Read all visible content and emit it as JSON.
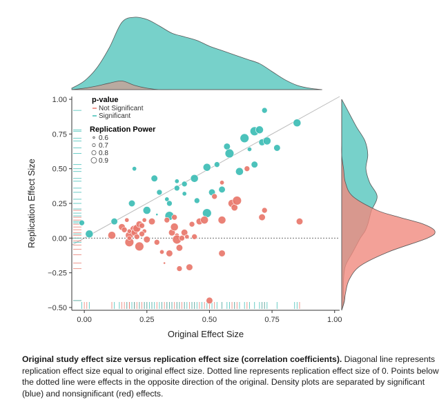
{
  "colors": {
    "significant": "#3dbdb5",
    "not_significant": "#e8776b",
    "significant_density": "#5fc9c1",
    "not_significant_density": "#f08a7e",
    "identity_line": "#bbbbbb",
    "axis": "#333333"
  },
  "chart_data": {
    "type": "scatter",
    "xlabel": "Original Effect Size",
    "ylabel": "Replication Effect Size",
    "xlim": [
      -0.05,
      1.02
    ],
    "ylim": [
      -0.52,
      1.02
    ],
    "xticks": [
      0.0,
      0.25,
      0.5,
      0.75,
      1.0
    ],
    "xtick_labels": [
      "0.00",
      "0.25",
      "0.50",
      "0.75",
      "1.00"
    ],
    "yticks": [
      -0.5,
      -0.25,
      0.0,
      0.25,
      0.5,
      0.75,
      1.0
    ],
    "ytick_labels": [
      "−0.50",
      "−0.25",
      "0.00",
      "0.25",
      "0.50",
      "0.75",
      "1.00"
    ],
    "reference_lines": [
      {
        "type": "diagonal",
        "slope": 1,
        "intercept": 0,
        "style": "solid"
      },
      {
        "type": "horizontal",
        "y": 0,
        "style": "dotted"
      }
    ],
    "legend": {
      "title_pvalue": "p-value",
      "pvalue_items": [
        {
          "label": "Not Significant",
          "group": "not_significant"
        },
        {
          "label": "Significant",
          "group": "significant"
        }
      ],
      "title_power": "Replication Power",
      "power_items": [
        {
          "label": "0.6",
          "power": 0.6
        },
        {
          "label": "0.7",
          "power": 0.7
        },
        {
          "label": "0.8",
          "power": 0.8
        },
        {
          "label": "0.9",
          "power": 0.9
        }
      ],
      "position": "top-left"
    },
    "series": [
      {
        "name": "Significant",
        "points": [
          [
            -0.01,
            0.11,
            0.75
          ],
          [
            0.02,
            0.03,
            0.85
          ],
          [
            0.12,
            0.12,
            0.8
          ],
          [
            0.19,
            0.25,
            0.8
          ],
          [
            0.2,
            0.5,
            0.7
          ],
          [
            0.25,
            0.2,
            0.85
          ],
          [
            0.28,
            0.43,
            0.8
          ],
          [
            0.3,
            0.33,
            0.75
          ],
          [
            0.33,
            0.28,
            0.7
          ],
          [
            0.34,
            0.25,
            0.75
          ],
          [
            0.34,
            0.16,
            0.9
          ],
          [
            0.37,
            0.36,
            0.75
          ],
          [
            0.37,
            0.41,
            0.7
          ],
          [
            0.4,
            0.39,
            0.75
          ],
          [
            0.4,
            0.32,
            0.7
          ],
          [
            0.44,
            0.43,
            0.85
          ],
          [
            0.45,
            0.27,
            0.75
          ],
          [
            0.49,
            0.18,
            0.9
          ],
          [
            0.49,
            0.51,
            0.85
          ],
          [
            0.51,
            0.33,
            0.8
          ],
          [
            0.53,
            0.53,
            0.75
          ],
          [
            0.55,
            0.35,
            0.8
          ],
          [
            0.57,
            0.66,
            0.8
          ],
          [
            0.58,
            0.61,
            0.9
          ],
          [
            0.62,
            0.48,
            0.85
          ],
          [
            0.64,
            0.72,
            0.9
          ],
          [
            0.66,
            0.64,
            0.7
          ],
          [
            0.68,
            0.53,
            0.8
          ],
          [
            0.68,
            0.77,
            0.9
          ],
          [
            0.7,
            0.78,
            0.85
          ],
          [
            0.71,
            0.69,
            0.8
          ],
          [
            0.72,
            0.92,
            0.75
          ],
          [
            0.73,
            0.7,
            0.85
          ],
          [
            0.77,
            0.65,
            0.8
          ],
          [
            0.85,
            0.83,
            0.85
          ],
          [
            0.29,
            0.17,
            0.6
          ]
        ]
      },
      {
        "name": "Not Significant",
        "points": [
          [
            0.11,
            0.02,
            0.85
          ],
          [
            0.15,
            0.08,
            0.8
          ],
          [
            0.16,
            0.06,
            0.75
          ],
          [
            0.17,
            0.13,
            0.7
          ],
          [
            0.18,
            0.02,
            0.85
          ],
          [
            0.18,
            -0.03,
            0.9
          ],
          [
            0.18,
            0.0,
            0.7
          ],
          [
            0.2,
            0.06,
            0.9
          ],
          [
            0.2,
            0.04,
            0.8
          ],
          [
            0.21,
            0.01,
            0.75
          ],
          [
            0.21,
            0.07,
            0.85
          ],
          [
            0.22,
            0.1,
            0.8
          ],
          [
            0.22,
            -0.06,
            0.9
          ],
          [
            0.23,
            0.09,
            0.75
          ],
          [
            0.24,
            0.05,
            0.7
          ],
          [
            0.25,
            -0.01,
            0.8
          ],
          [
            0.24,
            0.13,
            0.7
          ],
          [
            0.27,
            0.12,
            0.8
          ],
          [
            0.29,
            -0.03,
            0.75
          ],
          [
            0.31,
            -0.1,
            0.7
          ],
          [
            0.32,
            -0.18,
            0.6
          ],
          [
            0.33,
            0.13,
            0.75
          ],
          [
            0.34,
            -0.11,
            0.8
          ],
          [
            0.35,
            0.04,
            0.8
          ],
          [
            0.36,
            0.08,
            0.85
          ],
          [
            0.36,
            0.15,
            0.75
          ],
          [
            0.37,
            0.02,
            0.7
          ],
          [
            0.37,
            -0.01,
            0.9
          ],
          [
            0.38,
            -0.07,
            0.8
          ],
          [
            0.38,
            -0.22,
            0.75
          ],
          [
            0.39,
            0.0,
            0.75
          ],
          [
            0.4,
            0.04,
            0.8
          ],
          [
            0.42,
            -0.21,
            0.8
          ],
          [
            0.43,
            0.1,
            0.75
          ],
          [
            0.44,
            0.01,
            0.75
          ],
          [
            0.46,
            0.12,
            0.8
          ],
          [
            0.48,
            0.13,
            0.85
          ],
          [
            0.52,
            0.3,
            0.75
          ],
          [
            0.55,
            0.13,
            0.85
          ],
          [
            0.55,
            0.4,
            0.7
          ],
          [
            0.55,
            -0.11,
            0.8
          ],
          [
            0.59,
            0.25,
            0.85
          ],
          [
            0.6,
            0.22,
            0.8
          ],
          [
            0.61,
            0.27,
            0.9
          ],
          [
            0.65,
            0.5,
            0.75
          ],
          [
            0.71,
            0.15,
            0.8
          ],
          [
            0.72,
            0.2,
            0.75
          ],
          [
            0.86,
            0.12,
            0.8
          ],
          [
            0.5,
            -0.45,
            0.8
          ],
          [
            0.18,
            0.05,
            0.7
          ],
          [
            0.23,
            0.03,
            0.75
          ],
          [
            0.41,
            0.01,
            0.7
          ]
        ]
      }
    ],
    "rug_x": {
      "not_significant": [
        0.0,
        0.01,
        0.11,
        0.15,
        0.16,
        0.17,
        0.18,
        0.18,
        0.2,
        0.2,
        0.21,
        0.22,
        0.23,
        0.24,
        0.25,
        0.27,
        0.29,
        0.31,
        0.32,
        0.33,
        0.34,
        0.35,
        0.36,
        0.37,
        0.38,
        0.39,
        0.4,
        0.42,
        0.43,
        0.44,
        0.46,
        0.48,
        0.5,
        0.52,
        0.55,
        0.59,
        0.6,
        0.61,
        0.65,
        0.71,
        0.72,
        0.86
      ],
      "significant": [
        -0.01,
        0.02,
        0.12,
        0.14,
        0.17,
        0.19,
        0.2,
        0.22,
        0.24,
        0.25,
        0.26,
        0.27,
        0.28,
        0.3,
        0.31,
        0.33,
        0.34,
        0.35,
        0.37,
        0.38,
        0.4,
        0.41,
        0.43,
        0.44,
        0.45,
        0.47,
        0.49,
        0.51,
        0.53,
        0.55,
        0.57,
        0.58,
        0.6,
        0.62,
        0.64,
        0.66,
        0.68,
        0.7,
        0.71,
        0.72,
        0.73,
        0.77,
        0.84,
        0.85
      ]
    },
    "rug_y": {
      "not_significant": [
        0.2,
        0.15,
        0.13,
        0.1,
        0.08,
        0.06,
        0.04,
        0.02,
        0.0,
        -0.02,
        -0.05,
        -0.08,
        -0.12,
        -0.18,
        -0.22,
        -0.45
      ],
      "significant": [
        0.92,
        0.78,
        0.77,
        0.72,
        0.7,
        0.65,
        0.61,
        0.53,
        0.5,
        0.48,
        0.43,
        0.41,
        0.36,
        0.33,
        0.28,
        0.25,
        0.21,
        0.18,
        0.16,
        0.12,
        0.11,
        0.03,
        0.0,
        -0.03,
        -0.45
      ]
    },
    "density_x": {
      "grid": [
        -0.05,
        0.0,
        0.05,
        0.1,
        0.15,
        0.2,
        0.25,
        0.3,
        0.35,
        0.4,
        0.45,
        0.5,
        0.55,
        0.6,
        0.65,
        0.7,
        0.75,
        0.8,
        0.85,
        0.9,
        0.95
      ],
      "significant": [
        0.02,
        0.12,
        0.3,
        0.58,
        0.93,
        1.0,
        0.97,
        0.88,
        0.78,
        0.73,
        0.68,
        0.6,
        0.54,
        0.48,
        0.42,
        0.36,
        0.25,
        0.14,
        0.06,
        0.02,
        0.0
      ],
      "not_significant": [
        0.0,
        0.02,
        0.05,
        0.09,
        0.12,
        0.06,
        0.02,
        0.0,
        0.0,
        0.0,
        0.0,
        0.0,
        0.0,
        0.0,
        0.0,
        0.0,
        0.0,
        0.0,
        0.0,
        0.0,
        0.0
      ]
    },
    "density_y": {
      "grid": [
        -0.52,
        -0.45,
        -0.4,
        -0.3,
        -0.2,
        -0.1,
        0.0,
        0.05,
        0.1,
        0.15,
        0.2,
        0.3,
        0.4,
        0.5,
        0.6,
        0.7,
        0.8,
        0.9,
        0.95,
        1.0
      ],
      "significant": [
        0.0,
        0.03,
        0.02,
        0.02,
        0.04,
        0.12,
        0.2,
        0.25,
        0.28,
        0.3,
        0.32,
        0.38,
        0.3,
        0.26,
        0.28,
        0.25,
        0.16,
        0.08,
        0.04,
        0.0
      ],
      "not_significant": [
        0.0,
        0.03,
        0.04,
        0.08,
        0.2,
        0.5,
        0.92,
        1.0,
        0.88,
        0.62,
        0.38,
        0.12,
        0.04,
        0.02,
        0.0,
        0.0,
        0.0,
        0.0,
        0.0,
        0.0
      ]
    }
  },
  "caption": {
    "bold": "Original study effect size versus replication effect size (correlation coefficients).",
    "rest": " Diagonal line represents replication effect size equal to original effect size. Dotted line represents replication effect size of 0. Points below the dotted line were effects in the opposite direction of the original. Density plots are separated by significant (blue) and nonsignificant (red) effects."
  }
}
